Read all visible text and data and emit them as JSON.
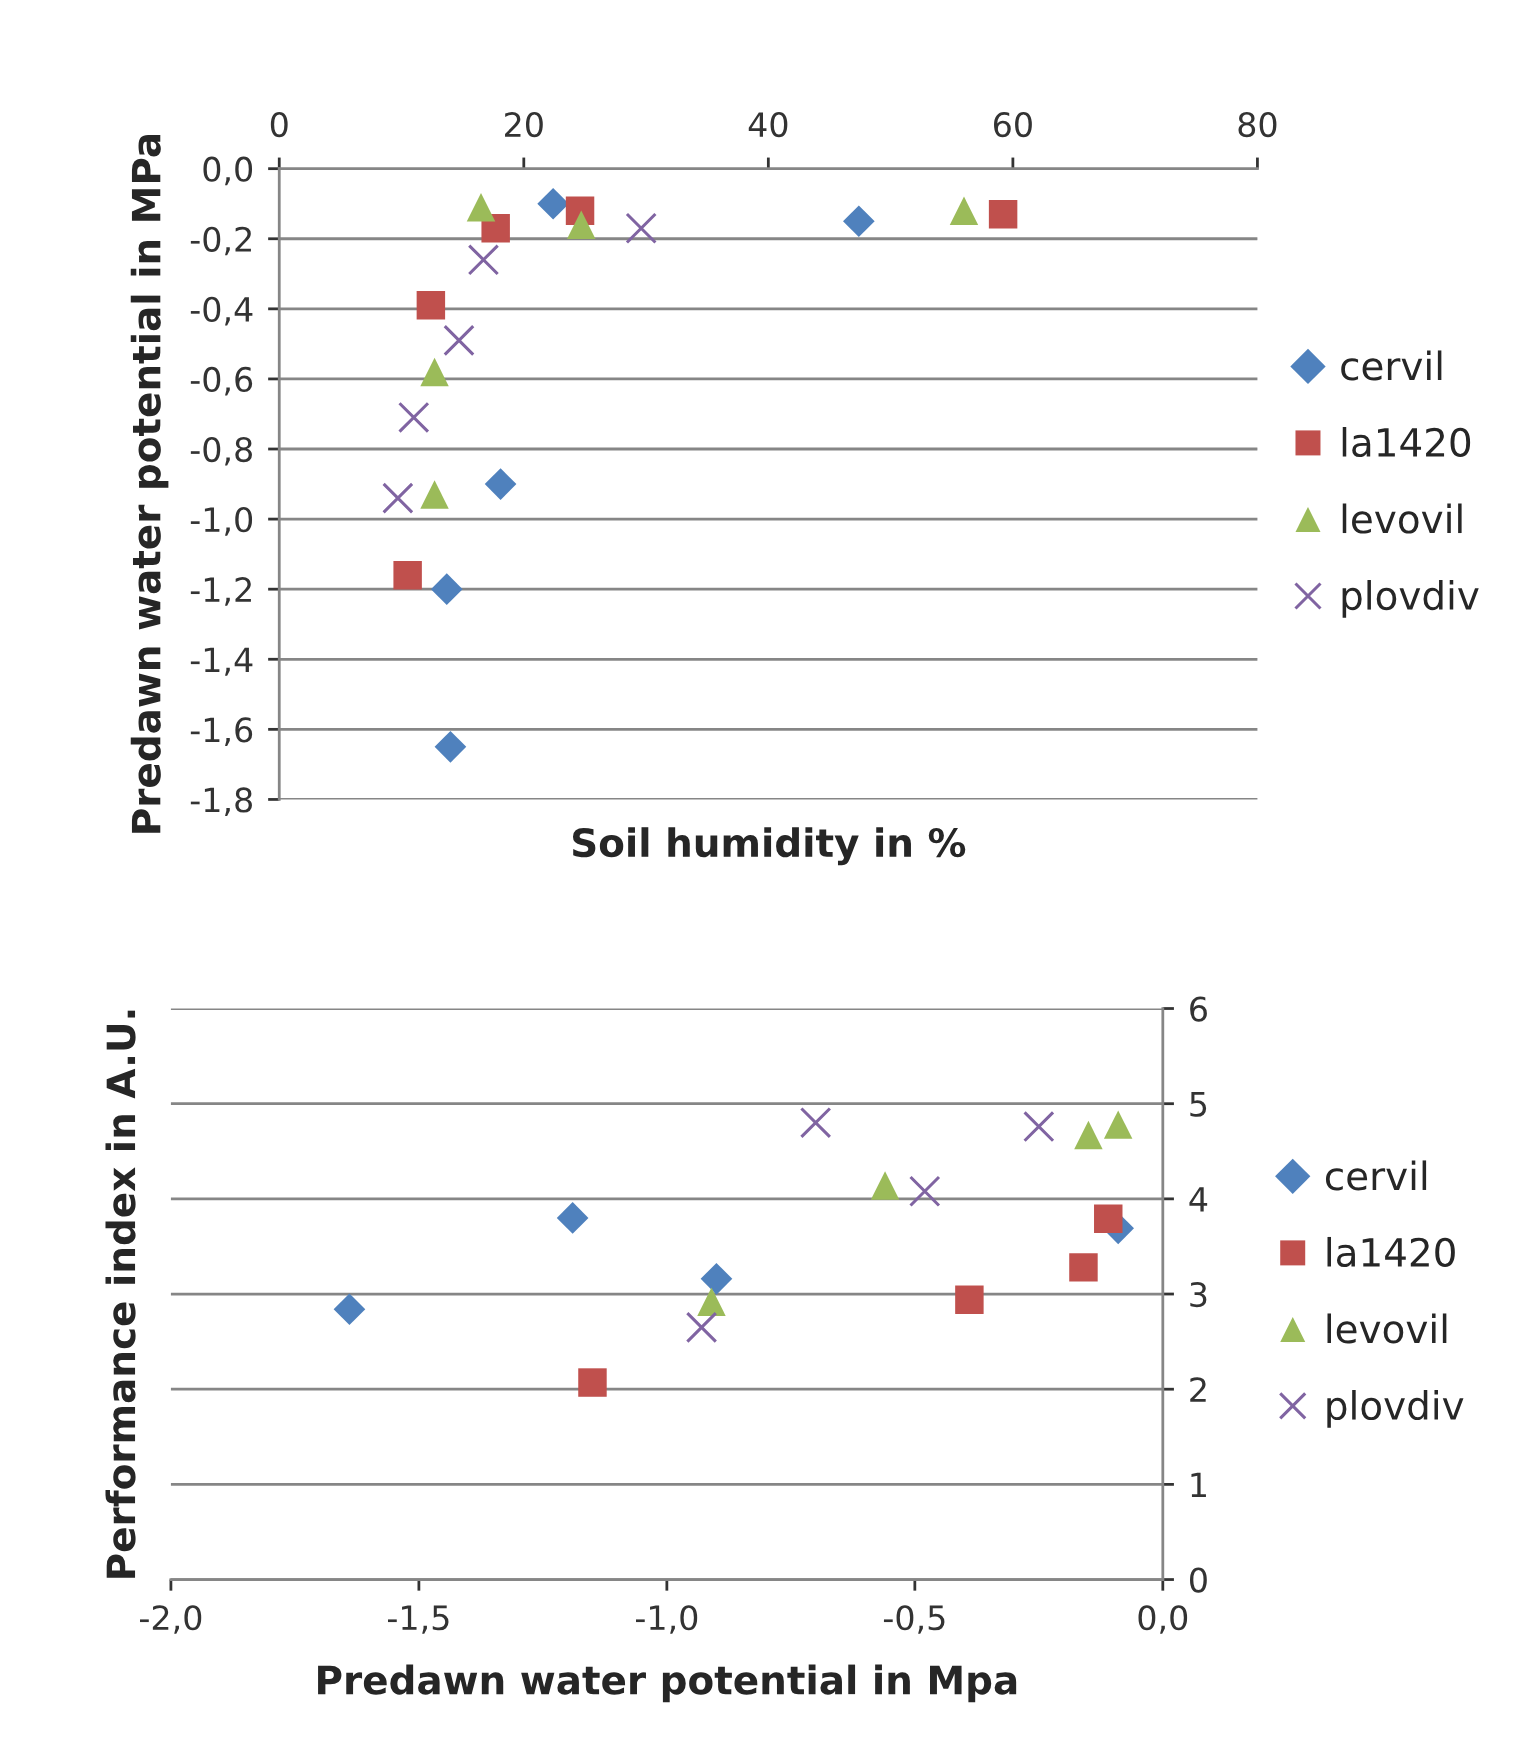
{
  "chart_data": [
    {
      "type": "scatter",
      "xlabel": "Soil humidity in %",
      "ylabel": "Predawn water potential in MPa",
      "xlim": [
        0,
        80
      ],
      "xticks": [
        0,
        20,
        40,
        60,
        80
      ],
      "ylim": [
        -1.8,
        0
      ],
      "yticks": [
        {
          "value": 0,
          "label": "0,0"
        },
        {
          "value": -0.2,
          "label": "-0,2"
        },
        {
          "value": -0.4,
          "label": "-0,4"
        },
        {
          "value": -0.6,
          "label": "-0,6"
        },
        {
          "value": -0.8,
          "label": "-0,8"
        },
        {
          "value": -1.0,
          "label": "-1,0"
        },
        {
          "value": -1.2,
          "label": "-1,2"
        },
        {
          "value": -1.4,
          "label": "-1,4"
        },
        {
          "value": -1.6,
          "label": "-1,6"
        },
        {
          "value": -1.8,
          "label": "-1,8"
        }
      ],
      "grid": "y",
      "legend": "right",
      "series": [
        {
          "name": "cervil",
          "color": "#4f81bd",
          "marker": "diamond",
          "x": [
            22.4,
            47.4,
            18.1,
            13.7,
            14.0
          ],
          "values": [
            -0.1,
            -0.15,
            -0.9,
            -1.2,
            -1.65
          ]
        },
        {
          "name": "la1420",
          "color": "#c0504d",
          "marker": "square",
          "x": [
            17.7,
            24.6,
            59.2,
            12.4,
            10.5
          ],
          "values": [
            -0.17,
            -0.12,
            -0.13,
            -0.39,
            -1.16
          ]
        },
        {
          "name": "levovil",
          "color": "#9bbb59",
          "marker": "triangle",
          "x": [
            16.5,
            24.7,
            56.0,
            12.7,
            12.7
          ],
          "values": [
            -0.11,
            -0.16,
            -0.12,
            -0.58,
            -0.93
          ]
        },
        {
          "name": "plovdiv",
          "color": "#8064a2",
          "marker": "cross",
          "x": [
            29.6,
            16.7,
            14.7,
            11.0,
            9.7
          ],
          "values": [
            -0.17,
            -0.26,
            -0.49,
            -0.71,
            -0.94
          ]
        }
      ]
    },
    {
      "type": "scatter",
      "xlabel": "Predawn water potential in Mpa",
      "ylabel": "Performance index in A.U.",
      "xlim": [
        -2.0,
        0.0
      ],
      "xticks": [
        {
          "value": -2.0,
          "label": "-2,0"
        },
        {
          "value": -1.5,
          "label": "-1,5"
        },
        {
          "value": -1.0,
          "label": "-1,0"
        },
        {
          "value": -0.5,
          "label": "-0,5"
        },
        {
          "value": 0.0,
          "label": "0,0"
        }
      ],
      "ylim": [
        0,
        6
      ],
      "yticks": [
        0,
        1,
        2,
        3,
        4,
        5,
        6
      ],
      "grid": "y",
      "legend": "right",
      "series": [
        {
          "name": "cervil",
          "color": "#4f81bd",
          "marker": "diamond",
          "x": [
            -1.64,
            -1.19,
            -0.9,
            -0.09
          ],
          "values": [
            2.84,
            3.8,
            3.16,
            3.69
          ]
        },
        {
          "name": "la1420",
          "color": "#c0504d",
          "marker": "square",
          "x": [
            -1.15,
            -0.39,
            -0.16,
            -0.11
          ],
          "values": [
            2.07,
            2.94,
            3.28,
            3.79
          ]
        },
        {
          "name": "levovil",
          "color": "#9bbb59",
          "marker": "triangle",
          "x": [
            -0.91,
            -0.56,
            -0.15,
            -0.09
          ],
          "values": [
            2.92,
            4.14,
            4.67,
            4.78
          ]
        },
        {
          "name": "plovdiv",
          "color": "#8064a2",
          "marker": "cross",
          "x": [
            -0.93,
            -0.7,
            -0.48,
            -0.25
          ],
          "values": [
            2.65,
            4.8,
            4.08,
            4.76
          ]
        }
      ]
    }
  ]
}
